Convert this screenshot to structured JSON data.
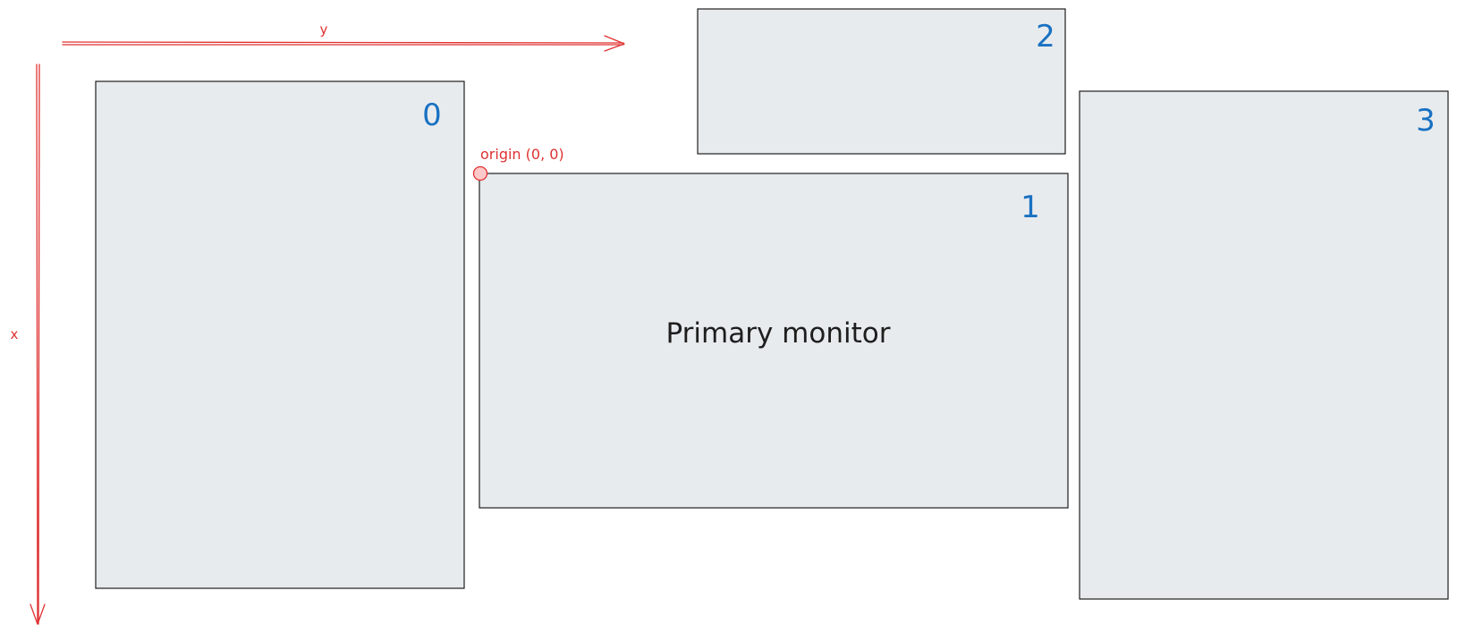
{
  "axes": {
    "horizontal_label": "y",
    "vertical_label": "x"
  },
  "origin": {
    "label": "origin (0, 0)"
  },
  "monitors": [
    {
      "id": "0",
      "label": ""
    },
    {
      "id": "1",
      "label": "Primary monitor"
    },
    {
      "id": "2",
      "label": ""
    },
    {
      "id": "3",
      "label": ""
    }
  ],
  "colors": {
    "monitor_fill": "#e8ebee",
    "monitor_stroke": "#1e1e1e",
    "monitor_number": "#1971c2",
    "axis": "#e03131",
    "origin_fill": "#ffc9c9"
  }
}
